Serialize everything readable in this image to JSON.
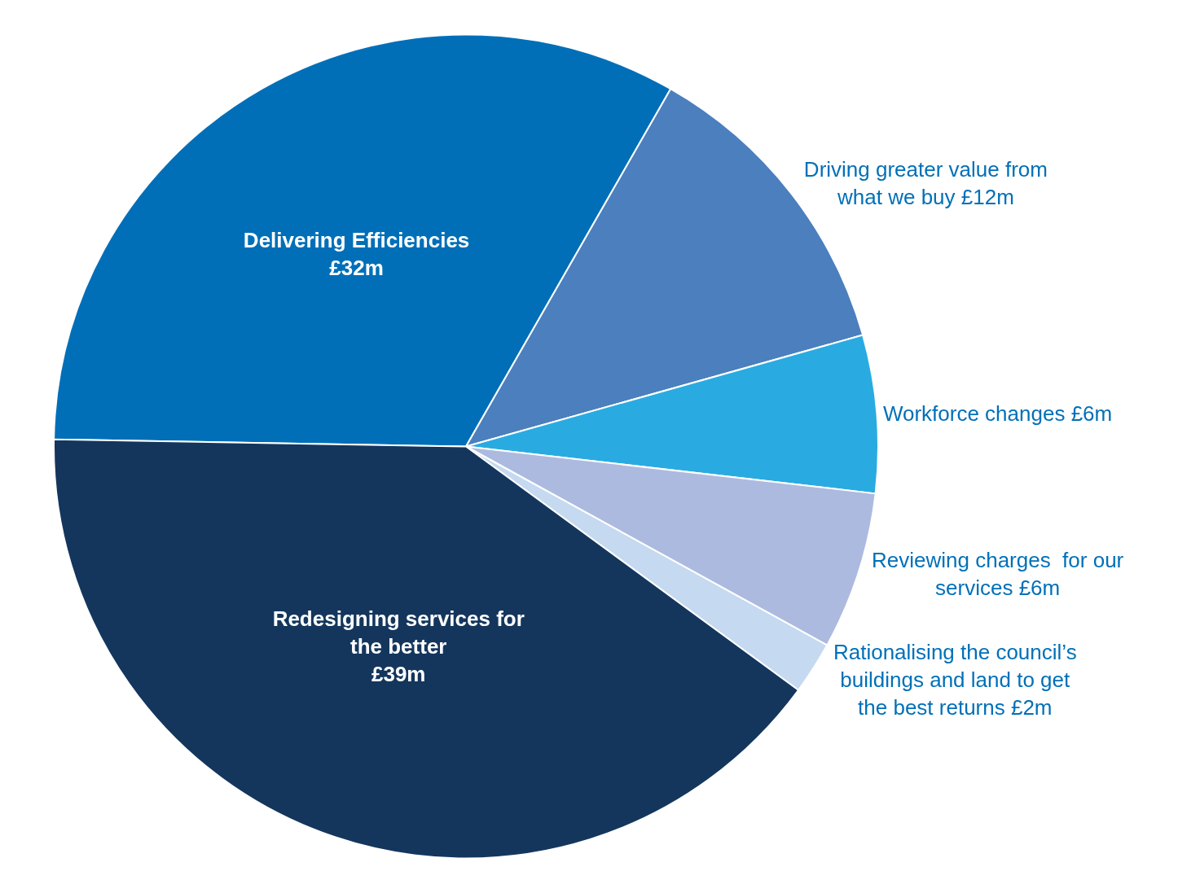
{
  "chart_data": {
    "type": "pie",
    "categories": [
      "Delivering Efficiencies",
      "Driving greater value from what we buy",
      "Workforce changes",
      "Reviewing charges  for our services",
      "Rationalising the council’s buildings and land to get the best returns",
      "Redesigning services for the better"
    ],
    "values": [
      32,
      12,
      6,
      6,
      2,
      39
    ],
    "value_labels": [
      "£32m",
      "£12m",
      "£6m",
      "£6m",
      "£2m",
      "£39m"
    ],
    "colors": [
      "#006fb8",
      "#4b7fbe",
      "#29abe2",
      "#adbadf",
      "#c5d9f0",
      "#14365d"
    ],
    "legend": false
  }
}
